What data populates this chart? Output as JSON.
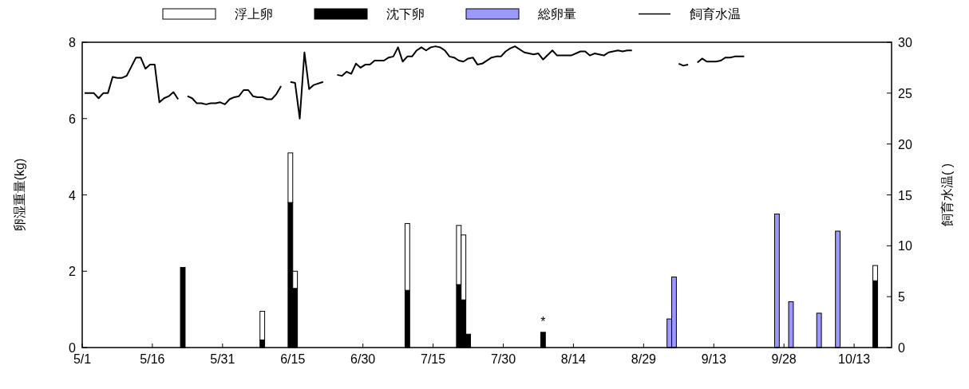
{
  "chart_data": {
    "type": "bar",
    "stacked": true,
    "ylabel": "卵湿重量(kg)",
    "y2label": "飼育水温(  )",
    "legend": "top",
    "xlim": [
      "--05-01",
      "--10-21"
    ],
    "xticks": [
      {
        "value": "--05-01",
        "label": "5/1"
      },
      {
        "value": "--05-16",
        "label": "5/16"
      },
      {
        "value": "--05-31",
        "label": "5/31"
      },
      {
        "value": "--06-15",
        "label": "6/15"
      },
      {
        "value": "--06-30",
        "label": "6/30"
      },
      {
        "value": "--07-15",
        "label": "7/15"
      },
      {
        "value": "--07-30",
        "label": "7/30"
      },
      {
        "value": "--08-14",
        "label": "8/14"
      },
      {
        "value": "--08-29",
        "label": "8/29"
      },
      {
        "value": "--09-13",
        "label": "9/13"
      },
      {
        "value": "--09-28",
        "label": "9/28"
      },
      {
        "value": "--10-13",
        "label": "10/13"
      }
    ],
    "x": [
      "--05-22",
      "--06-08",
      "--06-14",
      "--06-15",
      "--07-09",
      "--07-20",
      "--07-21",
      "--07-22",
      "--08-07",
      "--09-03",
      "--09-04",
      "--09-26",
      "--09-29",
      "--10-05",
      "--10-09",
      "--10-17"
    ],
    "ylim": [
      0,
      8
    ],
    "yticks": [
      0,
      2,
      4,
      6,
      8
    ],
    "y2lim": [
      0,
      30
    ],
    "y2ticks": [
      0,
      5,
      10,
      15,
      20,
      25,
      30
    ],
    "annotations": [
      {
        "text": "*",
        "x": "--08-07",
        "y": 0.4
      }
    ],
    "series": [
      {
        "name": "沈下卵",
        "color": "#000000",
        "values": [
          2.1,
          0.2,
          3.8,
          1.55,
          1.5,
          1.65,
          1.25,
          0.35,
          0.4,
          null,
          null,
          null,
          null,
          null,
          null,
          1.75
        ]
      },
      {
        "name": "浮上卵",
        "color": "#ffffff",
        "values": [
          null,
          0.75,
          1.3,
          0.45,
          1.75,
          1.55,
          1.7,
          null,
          null,
          null,
          null,
          null,
          null,
          null,
          null,
          0.4
        ]
      },
      {
        "name": "総卵量",
        "color": "#9999ff",
        "values": [
          null,
          null,
          null,
          null,
          null,
          null,
          null,
          null,
          null,
          0.75,
          1.85,
          3.5,
          1.2,
          0.9,
          3.05,
          null
        ]
      },
      {
        "name": "飼育水温",
        "type": "line",
        "axis": "y2",
        "color": "#000000",
        "x": [
          "--05-01",
          "--05-03",
          "--05-04",
          "--05-05",
          "--05-06",
          "--05-07",
          "--05-08",
          "--05-09",
          "--05-10",
          "--05-11",
          "--05-12",
          "--05-13",
          "--05-14",
          "--05-15",
          "--05-16",
          "--05-17",
          "--05-18",
          "--05-19",
          "--05-20",
          "--05-21",
          "--05-22",
          "--05-23",
          "--05-24",
          "--05-25",
          "--05-26",
          "--05-27",
          "--05-28",
          "--05-29",
          "--05-30",
          "--05-31",
          "--06-01",
          "--06-02",
          "--06-03",
          "--06-04",
          "--06-05",
          "--06-06",
          "--06-07",
          "--06-08",
          "--06-09",
          "--06-10",
          "--06-11",
          "--06-12",
          "--06-13",
          "--06-14",
          "--06-15",
          "--06-16",
          "--06-17",
          "--06-18",
          "--06-19",
          "--06-21",
          "--06-22",
          "--06-24",
          "--06-25",
          "--06-26",
          "--06-27",
          "--06-28",
          "--06-29",
          "--06-30",
          "--07-01",
          "--07-02",
          "--07-03",
          "--07-04",
          "--07-05",
          "--07-06",
          "--07-07",
          "--07-08",
          "--07-09",
          "--07-10",
          "--07-11",
          "--07-12",
          "--07-13",
          "--07-14",
          "--07-15",
          "--07-16",
          "--07-17",
          "--07-18",
          "--07-19",
          "--07-20",
          "--07-21",
          "--07-22",
          "--07-23",
          "--07-24",
          "--07-25",
          "--07-27",
          "--07-28",
          "--07-29",
          "--07-30",
          "--07-31",
          "--08-01",
          "--08-03",
          "--08-05",
          "--08-06",
          "--08-07",
          "--08-09",
          "--08-10",
          "--08-13",
          "--08-15",
          "--08-16",
          "--08-17",
          "--08-18",
          "--08-20",
          "--08-21",
          "--08-23",
          "--08-24",
          "--08-25",
          "--08-26",
          "--08-27",
          "--09-05",
          "--09-06",
          "--09-07",
          "--09-08",
          "--09-09",
          "--09-10",
          "--09-11",
          "--09-13",
          "--09-14",
          "--09-15",
          "--09-16",
          "--09-17",
          "--09-19"
        ],
        "values": [
          25.0,
          25.0,
          24.5,
          25.0,
          25.0,
          26.6,
          26.5,
          26.5,
          26.7,
          27.6,
          28.5,
          28.5,
          27.4,
          27.8,
          27.8,
          24.1,
          24.5,
          24.7,
          25.1,
          24.4,
          null,
          24.7,
          24.5,
          24.0,
          24.0,
          23.9,
          24.0,
          24.0,
          24.1,
          23.9,
          24.4,
          24.6,
          24.7,
          25.3,
          25.3,
          24.7,
          24.6,
          24.6,
          24.4,
          24.4,
          24.9,
          25.7,
          null,
          26.1,
          26.0,
          22.5,
          29.0,
          25.4,
          25.8,
          26.1,
          null,
          26.8,
          26.7,
          27.1,
          26.9,
          27.9,
          27.5,
          27.8,
          27.8,
          28.2,
          28.2,
          28.2,
          28.5,
          28.6,
          29.5,
          28.1,
          28.6,
          28.6,
          29.2,
          29.5,
          29.2,
          29.5,
          29.6,
          29.5,
          29.2,
          28.6,
          28.5,
          28.2,
          28.1,
          28.4,
          28.5,
          27.8,
          27.9,
          28.5,
          28.6,
          28.6,
          29.1,
          29.4,
          29.6,
          29.0,
          28.8,
          28.9,
          28.3,
          29.2,
          28.7,
          28.7,
          29.1,
          29.1,
          28.7,
          28.9,
          28.7,
          29.0,
          29.2,
          29.1,
          29.2,
          29.2,
          null,
          27.9,
          27.7,
          27.8,
          null,
          28.0,
          28.4,
          28.1,
          28.1,
          28.2,
          28.5,
          28.5,
          28.6,
          28.6
        ]
      }
    ]
  }
}
